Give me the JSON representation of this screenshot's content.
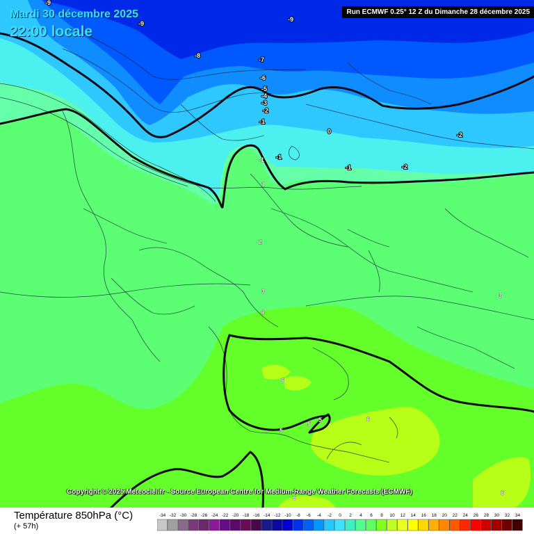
{
  "header": {
    "date": "Mardi 30 décembre 2025",
    "time": "22:00 locale",
    "run": "Run ECMWF 0.25° 12 Z du Dimanche 28 décembre 2025"
  },
  "copyright": "Copyright © 2025 Meteociel.fr - Source European Centre for Medium-Range Weather Forecasts (ECMWF)",
  "legend": {
    "title": "Température 850hPa (°C)",
    "subtitle": "(+ 57h)",
    "ticks": [
      "-34",
      "-32",
      "-30",
      "-28",
      "-26",
      "-24",
      "-22",
      "-20",
      "-18",
      "-16",
      "-14",
      "-12",
      "-10",
      "-8",
      "-6",
      "-4",
      "-2",
      "0",
      "2",
      "4",
      "6",
      "8",
      "10",
      "12",
      "14",
      "16",
      "18",
      "20",
      "22",
      "24",
      "26",
      "28",
      "30",
      "32",
      "34"
    ],
    "colors": [
      "#c8c8c8",
      "#a0a0a0",
      "#8a6a8a",
      "#7a3a7a",
      "#6a2a6a",
      "#8a1a9a",
      "#6a0a8a",
      "#5a0a6a",
      "#6a0a5a",
      "#4a0a4a",
      "#1a1a8a",
      "#0a0aa0",
      "#0000d0",
      "#0030f0",
      "#0060ff",
      "#0098ff",
      "#28c8ff",
      "#40e0ff",
      "#40f0c0",
      "#50ff90",
      "#60ff60",
      "#80ff20",
      "#c0ff20",
      "#e8ff20",
      "#ffff00",
      "#ffd800",
      "#ffb000",
      "#ff8800",
      "#ff5800",
      "#ff2800",
      "#ff0000",
      "#d00000",
      "#a00000",
      "#700000",
      "#400000"
    ]
  },
  "isotherm_labels": [
    "-9",
    "-9",
    "-9",
    "-8",
    "-7",
    "-6",
    "-5",
    "-4",
    "-3",
    "-2",
    "-1",
    "0",
    "-1",
    "-2",
    "-2",
    "-1",
    "-1",
    "1",
    "2",
    "3",
    "3",
    "4",
    "5",
    "5",
    "5",
    "6",
    "6",
    "6",
    "6"
  ],
  "colors": {
    "background_title": "#38e0ff",
    "run_box_bg": "#000000"
  }
}
